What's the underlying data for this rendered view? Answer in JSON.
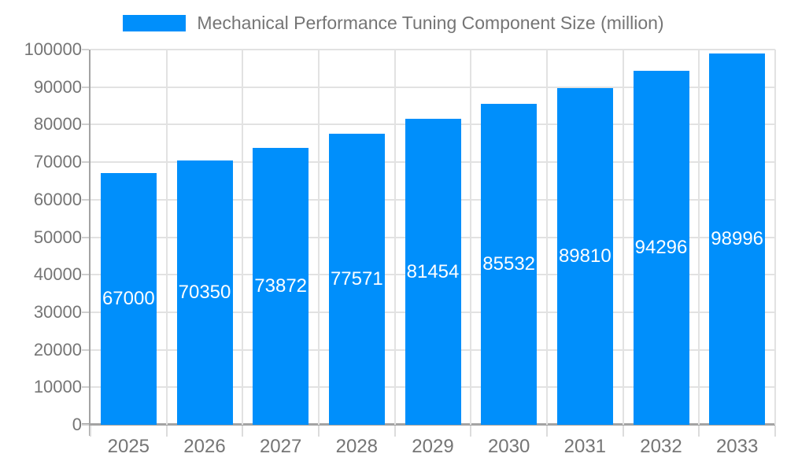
{
  "legend": {
    "label": "Mechanical Performance Tuning Component Size (million)"
  },
  "chart_data": {
    "type": "bar",
    "title": "Mechanical Performance Tuning Component Size (million)",
    "categories": [
      "2025",
      "2026",
      "2027",
      "2028",
      "2029",
      "2030",
      "2031",
      "2032",
      "2033"
    ],
    "values": [
      67000,
      70350,
      73872,
      77571,
      81454,
      85532,
      89810,
      94296,
      98996
    ],
    "xlabel": "",
    "ylabel": "",
    "ylim": [
      0,
      100000
    ],
    "ytick_step": 10000,
    "ytick_labels": [
      "0",
      "10000",
      "20000",
      "30000",
      "40000",
      "50000",
      "60000",
      "70000",
      "80000",
      "90000",
      "100000"
    ],
    "grid": "horizontal and vertical light gray",
    "legend_position": "top-center",
    "bar_labels_inside": true,
    "colors": {
      "bar": "#008FFB",
      "bar_label_text": "#ffffff",
      "axis_text": "#757575",
      "axis_line": "#a3a3a3",
      "gridline": "#e2e2e2"
    }
  }
}
